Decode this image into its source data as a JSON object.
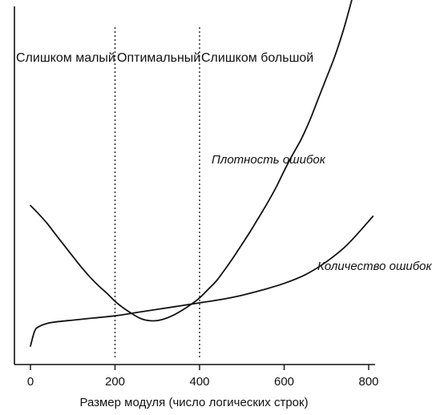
{
  "chart_data": {
    "type": "line",
    "xlabel": "Размер модуля (число логических строк)",
    "ylabel": "",
    "xlim": [
      0,
      800
    ],
    "x_ticks": [
      0,
      200,
      400,
      600,
      800
    ],
    "y_ticks": [],
    "grid": false,
    "regions": [
      {
        "label": "Слишком малый",
        "from": 0,
        "to": 200
      },
      {
        "label": "Оптимальный",
        "from": 200,
        "to": 400
      },
      {
        "label": "Слишком большой",
        "from": 400,
        "to": 800
      }
    ],
    "boundaries": [
      200,
      400
    ],
    "series": [
      {
        "name": "Плотность ошибок",
        "x": [
          0,
          20,
          40,
          60,
          80,
          100,
          120,
          140,
          160,
          180,
          200,
          220,
          240,
          260,
          280,
          300,
          320,
          340,
          360,
          380,
          400,
          420,
          440,
          460,
          480,
          500,
          520,
          540,
          560,
          580,
          600,
          620,
          640,
          660,
          680,
          700,
          720,
          740,
          760,
          780
        ],
        "y": [
          0.65,
          0.61,
          0.566,
          0.515,
          0.465,
          0.415,
          0.366,
          0.321,
          0.281,
          0.246,
          0.207,
          0.176,
          0.15,
          0.128,
          0.118,
          0.118,
          0.128,
          0.145,
          0.167,
          0.193,
          0.223,
          0.262,
          0.302,
          0.354,
          0.41,
          0.47,
          0.53,
          0.595,
          0.66,
          0.73,
          0.81,
          0.885,
          0.955,
          1.04,
          1.14,
          1.24,
          1.34,
          1.46,
          1.6,
          1.75
        ]
      },
      {
        "name": "Количество ошибок",
        "x": [
          0,
          10,
          20,
          40,
          60,
          100,
          150,
          200,
          250,
          300,
          350,
          400,
          450,
          500,
          550,
          600,
          650,
          700,
          750,
          810
        ],
        "y": [
          0.0,
          0.07,
          0.09,
          0.105,
          0.112,
          0.12,
          0.13,
          0.14,
          0.155,
          0.17,
          0.185,
          0.2,
          0.215,
          0.235,
          0.26,
          0.29,
          0.33,
          0.39,
          0.47,
          0.6
        ]
      }
    ]
  }
}
